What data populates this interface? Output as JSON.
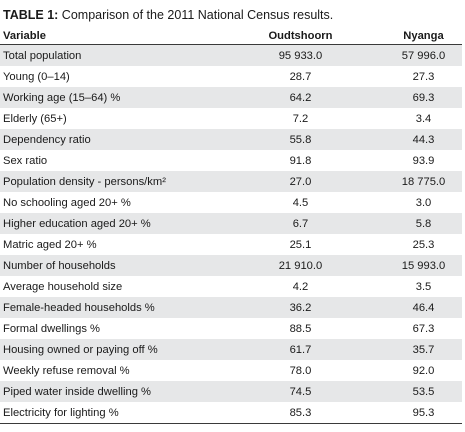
{
  "caption": {
    "label": "TABLE 1:",
    "text": " Comparison of the 2011 National Census results."
  },
  "table": {
    "headers": [
      "Variable",
      "Oudtshoorn",
      "Nyanga"
    ],
    "rows": [
      [
        "Total population",
        "95 933.0",
        "57 996.0"
      ],
      [
        "Young (0–14)",
        "28.7",
        "27.3"
      ],
      [
        "Working age (15–64) %",
        "64.2",
        "69.3"
      ],
      [
        "Elderly (65+)",
        "7.2",
        "3.4"
      ],
      [
        "Dependency ratio",
        "55.8",
        "44.3"
      ],
      [
        "Sex ratio",
        "91.8",
        "93.9"
      ],
      [
        "Population density - persons/km²",
        "27.0",
        "18 775.0"
      ],
      [
        "No schooling aged 20+ %",
        "4.5",
        "3.0"
      ],
      [
        "Higher education aged 20+ %",
        "6.7",
        "5.8"
      ],
      [
        "Matric aged 20+ %",
        "25.1",
        "25.3"
      ],
      [
        "Number of households",
        "21 910.0",
        "15 993.0"
      ],
      [
        "Average household size",
        "4.2",
        "3.5"
      ],
      [
        "Female-headed households %",
        "36.2",
        "46.4"
      ],
      [
        "Formal dwellings %",
        "88.5",
        "67.3"
      ],
      [
        "Housing owned or paying off %",
        "61.7",
        "35.7"
      ],
      [
        "Weekly refuse removal %",
        "78.0",
        "92.0"
      ],
      [
        "Piped water inside dwelling %",
        "74.5",
        "53.5"
      ],
      [
        "Electricity for lighting %",
        "85.3",
        "95.3"
      ]
    ]
  }
}
